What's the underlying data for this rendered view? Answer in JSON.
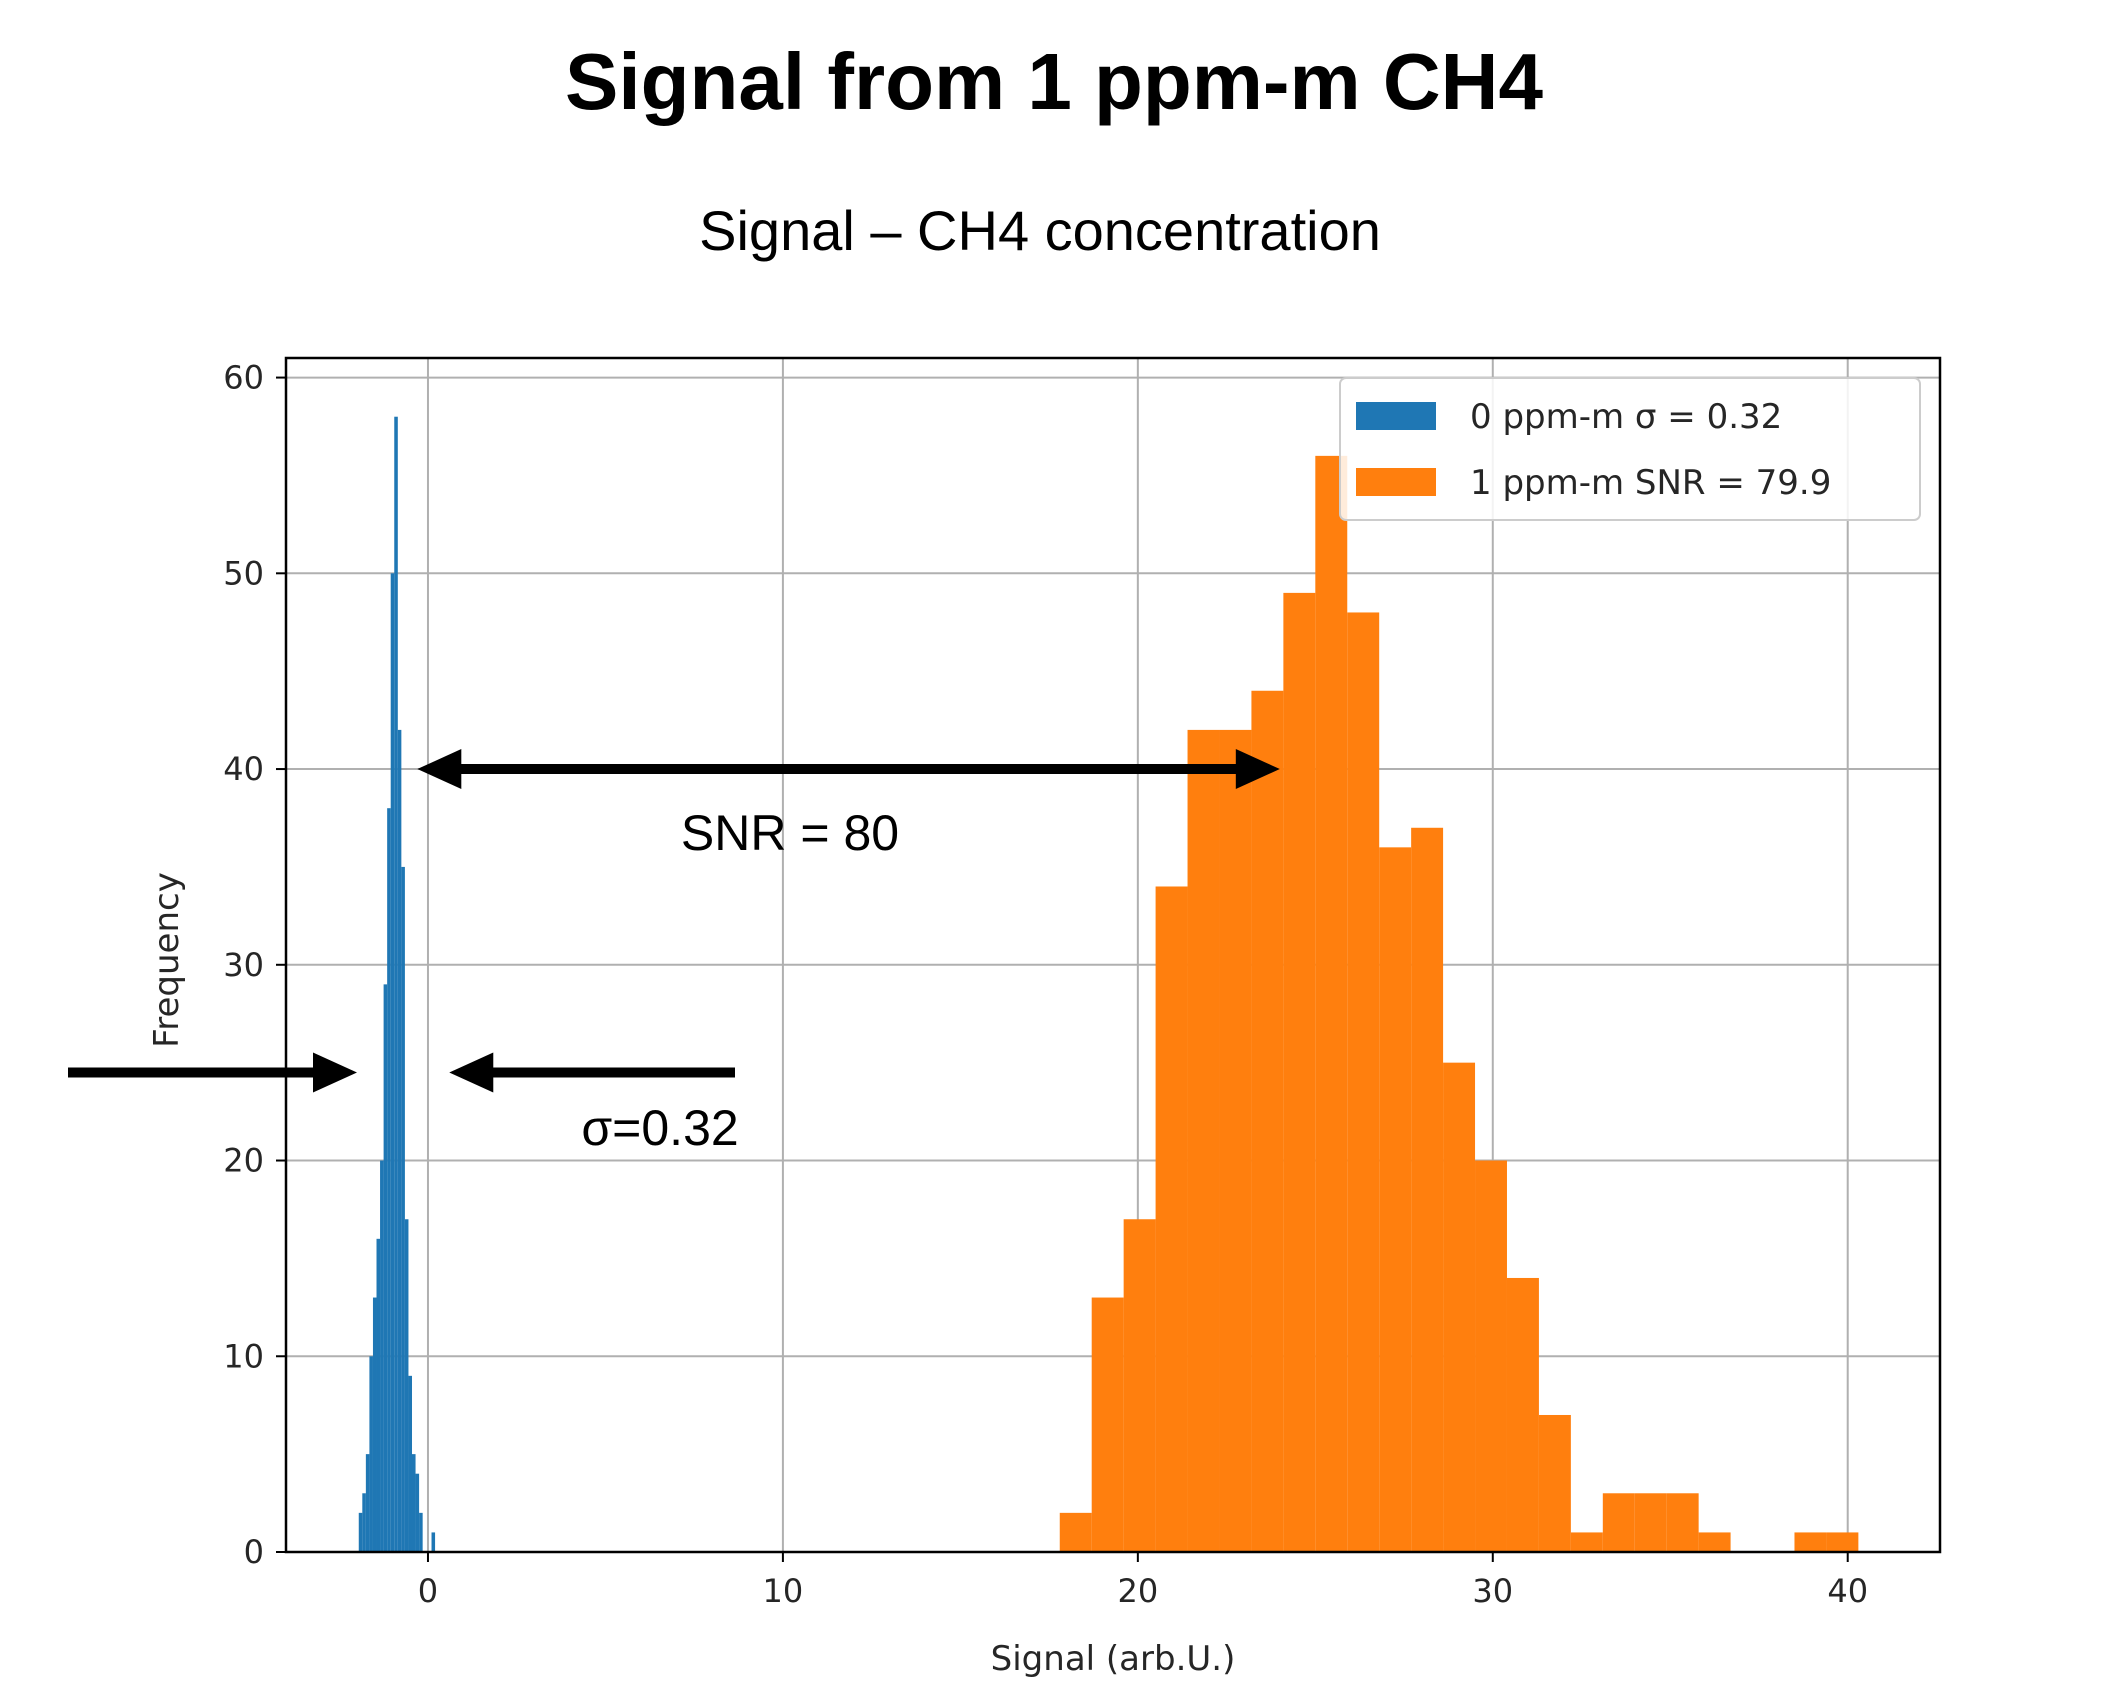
{
  "slide": {
    "title": "Signal from 1 ppm-m CH4"
  },
  "colors": {
    "series0": "#1f77b4",
    "series1": "#ff7f0e",
    "grid": "#b0b0b0",
    "arrow": "#000000"
  },
  "chart_data": {
    "type": "bar",
    "title": "Signal – CH4 concentration",
    "xlabel": "Signal (arb.U.)",
    "ylabel": "Frequency",
    "xlim": [
      -4,
      42.6
    ],
    "ylim": [
      0,
      61
    ],
    "xticks": [
      0,
      10,
      20,
      30,
      40
    ],
    "yticks": [
      0,
      10,
      20,
      30,
      40,
      50,
      60
    ],
    "grid": true,
    "legend_position": "top-right",
    "series": [
      {
        "name": "0 ppm-m σ = 0.32",
        "color": "#1f77b4",
        "bins": [
          [
            -1.95,
            -1.85,
            2
          ],
          [
            -1.85,
            -1.75,
            3
          ],
          [
            -1.75,
            -1.65,
            5
          ],
          [
            -1.65,
            -1.55,
            10
          ],
          [
            -1.55,
            -1.45,
            13
          ],
          [
            -1.45,
            -1.35,
            16
          ],
          [
            -1.35,
            -1.25,
            20
          ],
          [
            -1.25,
            -1.15,
            29
          ],
          [
            -1.15,
            -1.05,
            38
          ],
          [
            -1.05,
            -0.95,
            50
          ],
          [
            -0.95,
            -0.85,
            58
          ],
          [
            -0.85,
            -0.75,
            42
          ],
          [
            -0.75,
            -0.65,
            35
          ],
          [
            -0.65,
            -0.55,
            17
          ],
          [
            -0.55,
            -0.45,
            9
          ],
          [
            -0.45,
            -0.35,
            5
          ],
          [
            -0.35,
            -0.25,
            4
          ],
          [
            -0.25,
            -0.15,
            2
          ],
          [
            0.1,
            0.2,
            1
          ]
        ]
      },
      {
        "name": "1 ppm-m SNR = 79.9",
        "color": "#ff7f0e",
        "bins": [
          [
            17.8,
            18.7,
            2
          ],
          [
            18.7,
            19.6,
            13
          ],
          [
            19.6,
            20.5,
            17
          ],
          [
            20.5,
            21.4,
            34
          ],
          [
            21.4,
            22.3,
            42
          ],
          [
            22.3,
            23.2,
            42
          ],
          [
            23.2,
            24.1,
            44
          ],
          [
            24.1,
            25.0,
            49
          ],
          [
            25.0,
            25.9,
            56
          ],
          [
            25.9,
            26.8,
            48
          ],
          [
            26.8,
            27.7,
            36
          ],
          [
            27.7,
            28.6,
            37
          ],
          [
            28.6,
            29.5,
            25
          ],
          [
            29.5,
            30.4,
            20
          ],
          [
            30.4,
            31.3,
            14
          ],
          [
            31.3,
            32.2,
            7
          ],
          [
            32.2,
            33.1,
            1
          ],
          [
            33.1,
            34.0,
            3
          ],
          [
            34.0,
            34.9,
            3
          ],
          [
            34.9,
            35.8,
            3
          ],
          [
            35.8,
            36.7,
            1
          ],
          [
            38.5,
            39.4,
            1
          ],
          [
            39.4,
            40.3,
            1
          ]
        ]
      }
    ],
    "annotations": [
      {
        "text": "SNR = 80",
        "arrow": "double",
        "from": [
          -0.3,
          40
        ],
        "to": [
          24.0,
          40
        ]
      },
      {
        "text": "σ=0.32",
        "arrow": "pair-inward",
        "left_tip": -2.0,
        "right_tip": 0.6,
        "y": 24.5
      }
    ]
  }
}
